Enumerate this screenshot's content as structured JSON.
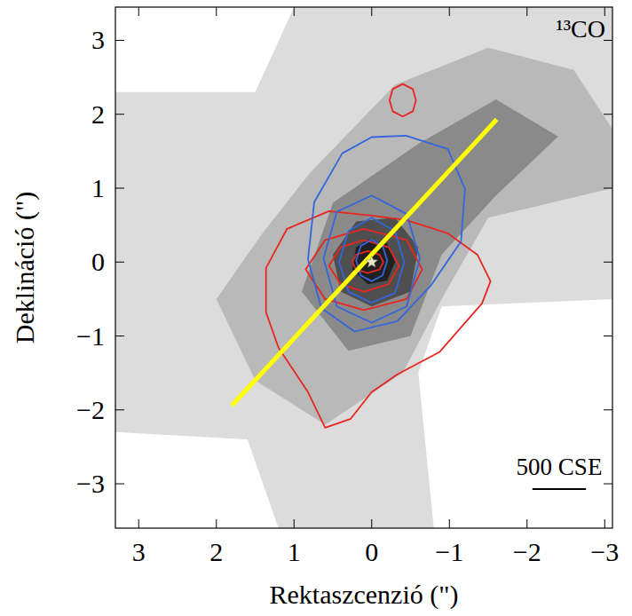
{
  "chart_data": {
    "type": "contour_map",
    "title": "¹³CO",
    "x_label": "Rektaszcenzió (\")",
    "y_label": "Deklináció (\")",
    "xlim": [
      3.3,
      -3.1
    ],
    "ylim": [
      -3.6,
      3.45
    ],
    "xticks": [
      3,
      2,
      1,
      0,
      {
        "value": -1,
        "label": "−1"
      },
      {
        "value": -2,
        "label": "−2"
      },
      {
        "value": -3,
        "label": "−3"
      }
    ],
    "yticks": [
      {
        "value": -3,
        "label": "−3"
      },
      {
        "value": -2,
        "label": "−2"
      },
      {
        "value": -1,
        "label": "−1"
      },
      0,
      1,
      2,
      3
    ],
    "emission": [
      {
        "level": 0.15,
        "x": [
          3.3,
          1.5,
          1.0,
          -3.1,
          -3.1,
          -0.9,
          -0.6,
          -0.8,
          1.2,
          1.6,
          3.3
        ],
        "y": [
          2.3,
          2.3,
          3.45,
          3.45,
          -0.5,
          -0.6,
          -1.5,
          -3.6,
          -3.6,
          -2.4,
          -2.3
        ]
      },
      {
        "level": 0.3,
        "x": [
          0.8,
          -0.3,
          -1.5,
          -2.6,
          -3.1,
          -3.1,
          -1.5,
          -0.9,
          -0.4,
          0.6,
          1.5,
          2.0,
          1.4
        ],
        "y": [
          1.2,
          2.4,
          2.9,
          2.6,
          1.8,
          1.0,
          0.6,
          -0.5,
          -1.5,
          -2.2,
          -1.6,
          -0.5,
          0.4
        ]
      },
      {
        "level": 0.5,
        "x": [
          0.5,
          -0.6,
          -1.6,
          -2.4,
          -1.6,
          -0.9,
          -0.5,
          0.3,
          0.9
        ],
        "y": [
          0.8,
          1.6,
          2.2,
          1.7,
          0.9,
          0.1,
          -1.0,
          -1.2,
          -0.4
        ]
      },
      {
        "level": 0.75,
        "x": [
          0.2,
          -0.3,
          -0.6,
          -0.5,
          0,
          0.4,
          0.5
        ],
        "y": [
          0.55,
          0.6,
          0.2,
          -0.4,
          -0.6,
          -0.4,
          0.1
        ]
      },
      {
        "level": 0.95,
        "x": [
          0.05,
          -0.2,
          -0.3,
          -0.2,
          0.05,
          0.25,
          0.2
        ],
        "y": [
          0.3,
          0.25,
          0,
          -0.25,
          -0.3,
          -0.1,
          0.2
        ]
      }
    ],
    "contours": [
      {
        "color": "#e8261f",
        "levels": [
          {
            "x": [
              1.36,
              1.09,
              0.55,
              0,
              -0.44,
              -0.98,
              -1.36,
              -1.53,
              -1.42,
              -0.87,
              -0.33,
              0,
              0.27,
              0.6,
              0.82,
              1.2,
              1.36
            ],
            "y": [
              -0.08,
              0.45,
              0.69,
              0.63,
              0.57,
              0.39,
              0.1,
              -0.26,
              -0.56,
              -1.22,
              -1.52,
              -1.76,
              -2.12,
              -2.24,
              -1.76,
              -1.16,
              -0.68
            ]
          },
          {
            "x": [
              0.1,
              -0.45,
              -0.65,
              -0.45,
              0.1,
              0.6,
              0.85,
              0.6
            ],
            "y": [
              0.45,
              0.3,
              -0.1,
              -0.5,
              -0.65,
              -0.5,
              -0.1,
              0.3
            ]
          },
          {
            "x": [
              0.1,
              -0.22,
              -0.35,
              -0.22,
              0.1,
              0.4,
              0.55,
              0.4
            ],
            "y": [
              0.3,
              0.2,
              -0.05,
              -0.3,
              -0.4,
              -0.3,
              -0.05,
              0.2
            ]
          },
          {
            "x": [
              0.05,
              -0.1,
              -0.15,
              -0.1,
              0.05,
              0.2,
              0.25,
              0.2
            ],
            "y": [
              0.15,
              0.1,
              0,
              -0.1,
              -0.15,
              -0.1,
              0,
              0.1
            ]
          },
          {
            "x": [
              -0.4,
              -0.53,
              -0.57,
              -0.53,
              -0.4,
              -0.27,
              -0.23,
              -0.27
            ],
            "y": [
              2.41,
              2.34,
              2.19,
              2.04,
              1.97,
              2.04,
              2.19,
              2.34
            ]
          }
        ]
      },
      {
        "color": "#3366dd",
        "levels": [
          {
            "x": [
              -0.44,
              -0.98,
              -1.2,
              -1.15,
              -0.76,
              -0.33,
              0.22,
              0.65,
              0.82,
              0.74,
              0.38,
              0
            ],
            "y": [
              1.71,
              1.53,
              0.99,
              0.28,
              -0.32,
              -0.8,
              -0.94,
              -0.62,
              0.04,
              0.81,
              1.47,
              1.69
            ]
          },
          {
            "x": [
              0,
              -0.45,
              -0.62,
              -0.45,
              0,
              0.45,
              0.62,
              0.45
            ],
            "y": [
              0.9,
              0.65,
              0.05,
              -0.6,
              -0.82,
              -0.6,
              0.05,
              0.68
            ]
          },
          {
            "x": [
              0,
              -0.3,
              -0.42,
              -0.3,
              0,
              0.3,
              0.42,
              0.3
            ],
            "y": [
              0.6,
              0.42,
              0,
              -0.42,
              -0.55,
              -0.4,
              0,
              0.42
            ]
          },
          {
            "x": [
              0,
              -0.14,
              -0.2,
              -0.14,
              0,
              0.14,
              0.2,
              0.14
            ],
            "y": [
              0.3,
              0.22,
              0.02,
              -0.18,
              -0.26,
              -0.18,
              0.02,
              0.22
            ]
          }
        ]
      }
    ],
    "axis_line": {
      "x": [
        1.8,
        -1.61
      ],
      "y": [
        -1.94,
        1.93
      ],
      "color": "#ffff00"
    },
    "source": {
      "x": 0,
      "y": 0,
      "marker": "star",
      "color": "#e8e8c8"
    },
    "scale_bar": {
      "label": "500 CSE",
      "length": 0.69
    }
  }
}
